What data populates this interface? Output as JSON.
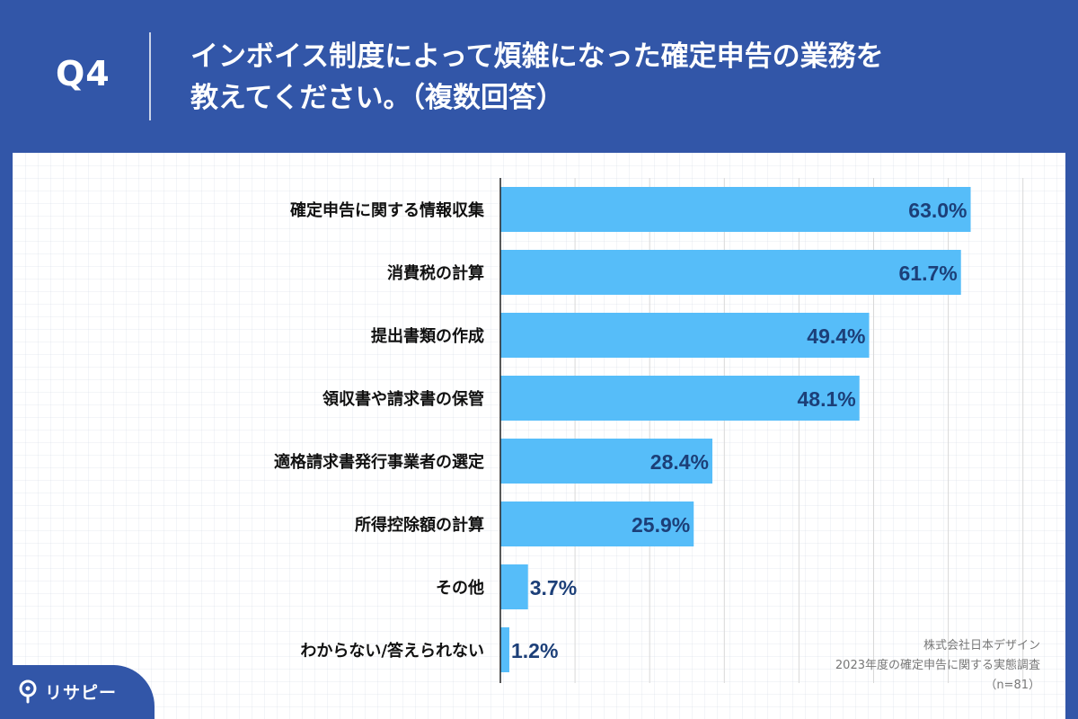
{
  "header": {
    "q_label": "Q4",
    "question_line1": "インボイス制度によって煩雑になった確定申告の業務を",
    "question_line2": "教えてください。（複数回答）"
  },
  "chart_data": {
    "type": "bar",
    "orientation": "horizontal",
    "title": "インボイス制度によって煩雑になった確定申告の業務を教えてください。（複数回答）",
    "xlabel": "",
    "ylabel": "",
    "xlim": [
      0,
      70
    ],
    "grid": true,
    "unit": "%",
    "categories": [
      "確定申告に関する情報収集",
      "消費税の計算",
      "提出書類の作成",
      "領収書や請求書の保管",
      "適格請求書発行事業者の選定",
      "所得控除額の計算",
      "その他",
      "わからない/答えられない"
    ],
    "values": [
      63.0,
      61.7,
      49.4,
      48.1,
      28.4,
      25.9,
      3.7,
      1.2
    ],
    "value_labels": [
      "63.0%",
      "61.7%",
      "49.4%",
      "48.1%",
      "28.4%",
      "25.9%",
      "3.7%",
      "1.2%"
    ]
  },
  "colors": {
    "header_bg": "#3256a8",
    "bar": "#56bdf9",
    "value_label": "#1c3f78",
    "category_label": "#111111",
    "grid": "#d8d8d8"
  },
  "credit": {
    "line1": "株式会社日本デザイン",
    "line2": "2023年度の確定申告に関する実態調査",
    "line3": "（n=81）"
  },
  "brand": {
    "name": "リサピー",
    "icon": "map-pin-icon"
  }
}
